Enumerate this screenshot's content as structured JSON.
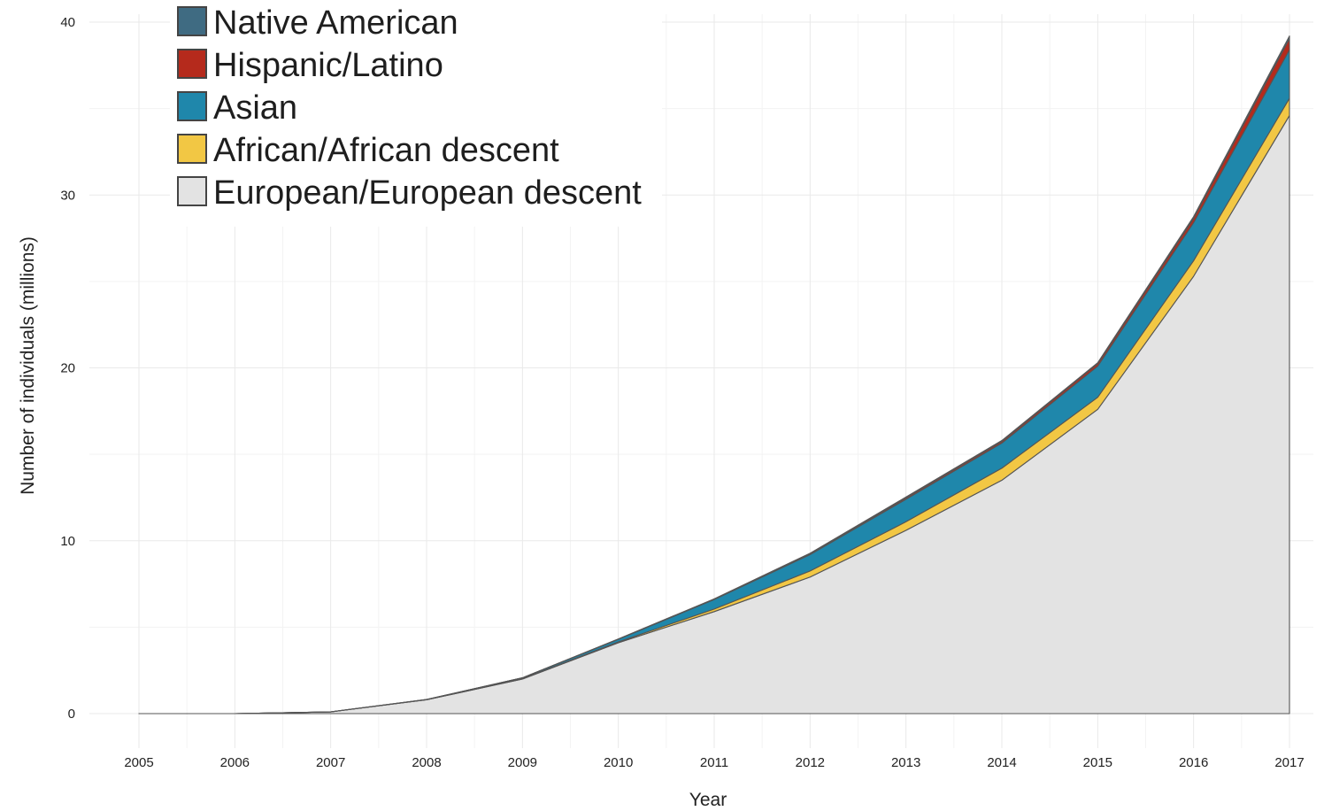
{
  "chart_data": {
    "type": "area",
    "stacked": true,
    "xlabel": "Year",
    "ylabel": "Number of individuals (millions)",
    "x": [
      2005,
      2006,
      2007,
      2008,
      2009,
      2010,
      2011,
      2012,
      2013,
      2014,
      2015,
      2016,
      2017
    ],
    "x_ticks": [
      "2005",
      "2006",
      "2007",
      "2008",
      "2009",
      "2010",
      "2011",
      "2012",
      "2013",
      "2014",
      "2015",
      "2016",
      "2017"
    ],
    "ylim": [
      0,
      40
    ],
    "y_ticks": [
      "0",
      "10",
      "20",
      "30",
      "40"
    ],
    "y_tick_values": [
      0,
      10,
      20,
      30,
      40
    ],
    "grid": true,
    "legend_position": "top-left",
    "series": [
      {
        "name": "European/European descent",
        "color": "#e3e3e3",
        "values": [
          0,
          0,
          0.1,
          0.8,
          2.0,
          4.1,
          5.9,
          7.9,
          10.6,
          13.5,
          17.6,
          25.3,
          34.6
        ]
      },
      {
        "name": "African/African descent",
        "color": "#f2c744",
        "values": [
          0,
          0,
          0,
          0,
          0.02,
          0.05,
          0.15,
          0.35,
          0.5,
          0.7,
          0.7,
          0.9,
          1.0
        ]
      },
      {
        "name": "Asian",
        "color": "#1f87ab",
        "values": [
          0,
          0,
          0,
          0.02,
          0.05,
          0.15,
          0.55,
          0.95,
          1.3,
          1.45,
          1.8,
          2.2,
          2.8
        ]
      },
      {
        "name": "Hispanic/Latino",
        "color": "#b52a1c",
        "values": [
          0,
          0,
          0,
          0,
          0,
          0.01,
          0.02,
          0.05,
          0.08,
          0.1,
          0.15,
          0.25,
          0.65
        ]
      },
      {
        "name": "Native American",
        "color": "#3f6b82",
        "values": [
          0,
          0,
          0,
          0,
          0,
          0.01,
          0.02,
          0.03,
          0.05,
          0.05,
          0.05,
          0.1,
          0.15
        ]
      }
    ],
    "legend": [
      "Native American",
      "Hispanic/Latino",
      "Asian",
      "African/African descent",
      "European/European descent"
    ]
  }
}
